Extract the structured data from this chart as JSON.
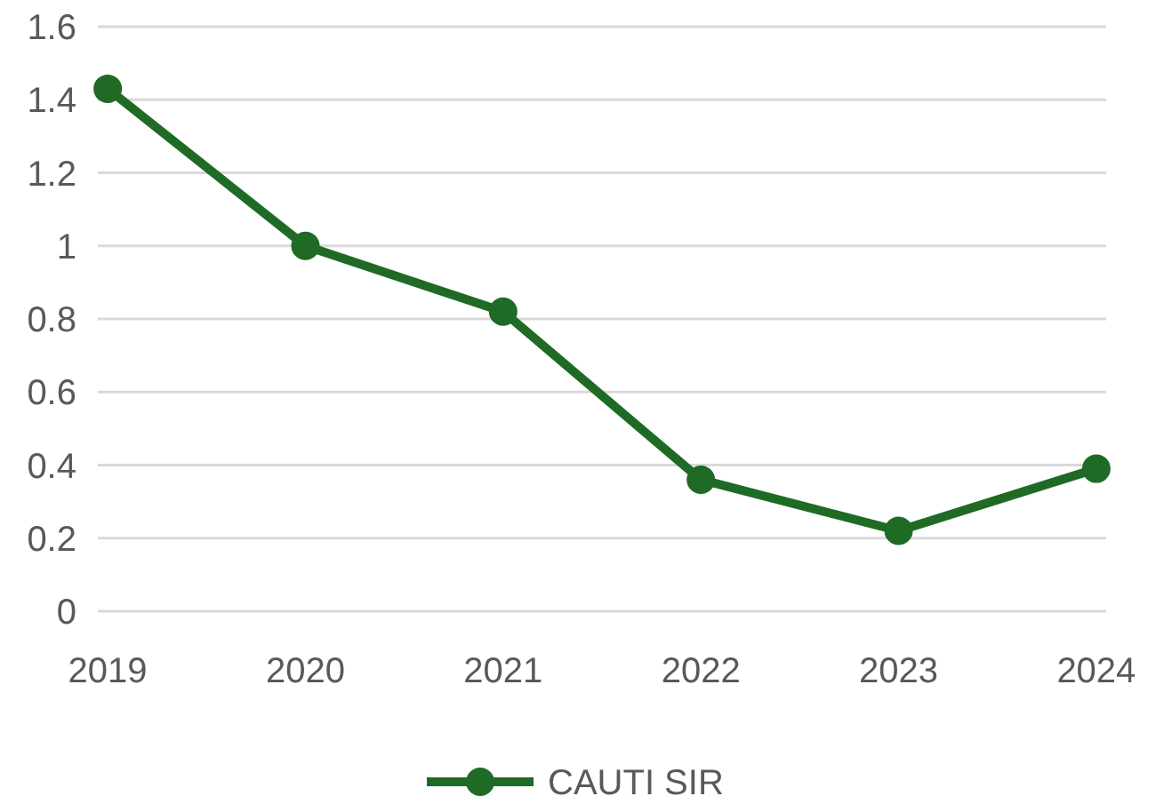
{
  "chart_data": {
    "type": "line",
    "categories": [
      "2019",
      "2020",
      "2021",
      "2022",
      "2023",
      "2024"
    ],
    "series": [
      {
        "name": "CAUTI SIR",
        "color": "#1f6b25",
        "values": [
          1.43,
          1.0,
          0.82,
          0.36,
          0.22,
          0.39
        ]
      }
    ],
    "ylim": [
      0,
      1.6
    ],
    "yticks": [
      0,
      0.2,
      0.4,
      0.6,
      0.8,
      1,
      1.2,
      1.4,
      1.6
    ],
    "grid": "y",
    "legend": "bottom",
    "marker": "circle",
    "line_style": "solid"
  }
}
